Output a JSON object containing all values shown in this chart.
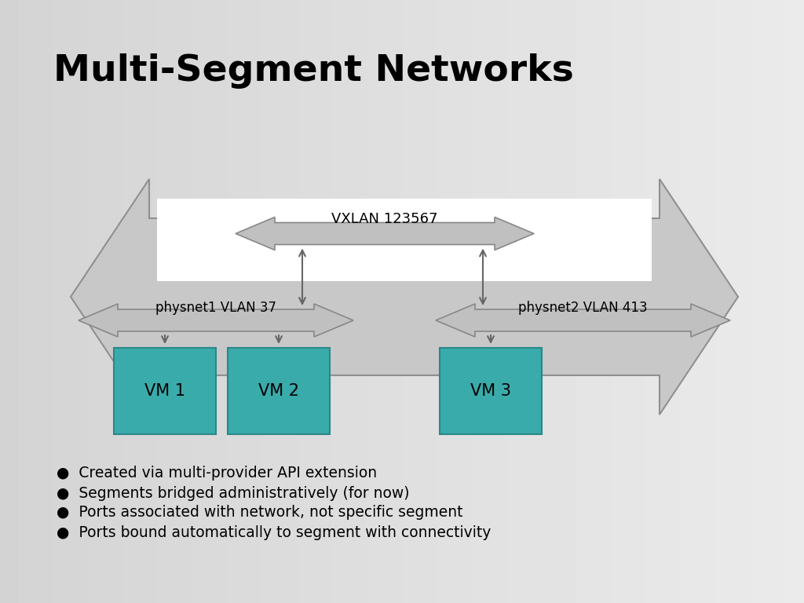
{
  "title": "Multi-Segment Networks",
  "title_fontsize": 34,
  "bg_gradient_left": "#d0d0d0",
  "bg_gradient_right": "#e8e8e8",
  "arrow_fill": "#c8c8c8",
  "arrow_edge": "#909090",
  "white_fill": "#ffffff",
  "vm_fill": "#3aabab",
  "vm_edge": "#2a8888",
  "vm_labels": [
    "VM 1",
    "VM 2",
    "VM 3"
  ],
  "vxlan_label": "VXLAN 123567",
  "physnet1_label": "physnet1 VLAN 37",
  "physnet2_label": "physnet2 VLAN 413",
  "bullet_points": [
    "Created via multi-provider API extension",
    "Segments bridged administratively (for now)",
    "Ports associated with network, not specific segment",
    "Ports bound automatically to segment with connectivity"
  ],
  "bullet_fontsize": 13.5,
  "vm_fontsize": 15,
  "connector_color": "#666666",
  "small_arrow_fill": "#c0c0c0",
  "small_arrow_edge": "#888888"
}
